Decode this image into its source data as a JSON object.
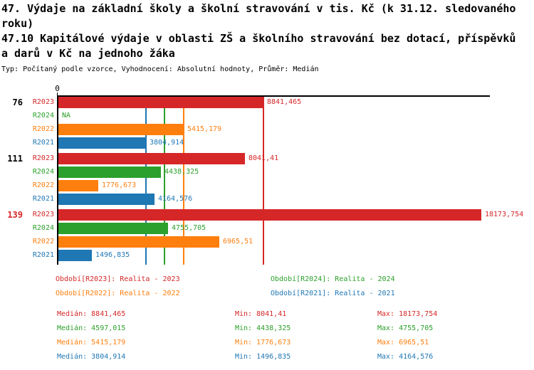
{
  "header": {
    "title_lines": [
      "47. Výdaje na základní školy a školní stravování v tis. Kč (k 31.12. sledovaného",
      "roku)",
      "47.10 Kapitálové výdaje v oblasti ZŠ a školního stravování bez dotací, příspěvků",
      "a darů v Kč na jednoho žáka"
    ],
    "meta": "Typ: Počítaný podle vzorce, Vyhodnocení: Absolutní hodnoty, Průměr: Medián"
  },
  "colors": {
    "R2023": "#d62728",
    "R2024": "#2ca02c",
    "R2022": "#ff7f0e",
    "R2021": "#1f77b4",
    "axis": "#000000",
    "highlight": "#d62728"
  },
  "chart_data": {
    "type": "bar",
    "orientation": "horizontal",
    "title": "47.10 Kapitálové výdaje v oblasti ZŠ a školního stravování bez dotací, příspěvků a darů v Kč na jednoho žáka",
    "x_axis": {
      "zero_label": "0",
      "min": 0,
      "max": 18500,
      "grid": false
    },
    "categories": [
      "76",
      "111",
      "139"
    ],
    "highlighted_category": "139",
    "series_order": [
      "R2023",
      "R2024",
      "R2022",
      "R2021"
    ],
    "groups": [
      {
        "category": "76",
        "highlight": false,
        "bars": [
          {
            "series": "R2023",
            "value": 8841.465,
            "label": "8841,465"
          },
          {
            "series": "R2024",
            "value": null,
            "label": "NA"
          },
          {
            "series": "R2022",
            "value": 5415.179,
            "label": "5415,179"
          },
          {
            "series": "R2021",
            "value": 3804.914,
            "label": "3804,914"
          }
        ]
      },
      {
        "category": "111",
        "highlight": false,
        "bars": [
          {
            "series": "R2023",
            "value": 8041.41,
            "label": "8041,41"
          },
          {
            "series": "R2024",
            "value": 4438.325,
            "label": "4438,325"
          },
          {
            "series": "R2022",
            "value": 1776.673,
            "label": "1776,673"
          },
          {
            "series": "R2021",
            "value": 4164.576,
            "label": "4164,576"
          }
        ]
      },
      {
        "category": "139",
        "highlight": true,
        "bars": [
          {
            "series": "R2023",
            "value": 18173.754,
            "label": "18173,754"
          },
          {
            "series": "R2024",
            "value": 4755.705,
            "label": "4755,705"
          },
          {
            "series": "R2022",
            "value": 6965.51,
            "label": "6965,51"
          },
          {
            "series": "R2021",
            "value": 1496.835,
            "label": "1496,835"
          }
        ]
      }
    ],
    "median_lines": [
      {
        "series": "R2021",
        "value": 3804.914
      },
      {
        "series": "R2024",
        "value": 4597.015
      },
      {
        "series": "R2022",
        "value": 5415.179
      },
      {
        "series": "R2023",
        "value": 8841.465
      }
    ]
  },
  "legend": [
    {
      "series": "R2023",
      "text": "Období[R2023]: Realita - 2023"
    },
    {
      "series": "R2024",
      "text": "Období[R2024]: Realita - 2024"
    },
    {
      "series": "R2022",
      "text": "Období[R2022]: Realita - 2022"
    },
    {
      "series": "R2021",
      "text": "Období[R2021]: Realita - 2021"
    }
  ],
  "stats": {
    "labels": {
      "median": "Medián",
      "min": "Min",
      "max": "Max"
    },
    "rows": [
      {
        "series": "R2023",
        "median": "8841,465",
        "min": "8041,41",
        "max": "18173,754"
      },
      {
        "series": "R2024",
        "median": "4597,015",
        "min": "4438,325",
        "max": "4755,705"
      },
      {
        "series": "R2022",
        "median": "5415,179",
        "min": "1776,673",
        "max": "6965,51"
      },
      {
        "series": "R2021",
        "median": "3804,914",
        "min": "1496,835",
        "max": "4164,576"
      }
    ]
  }
}
